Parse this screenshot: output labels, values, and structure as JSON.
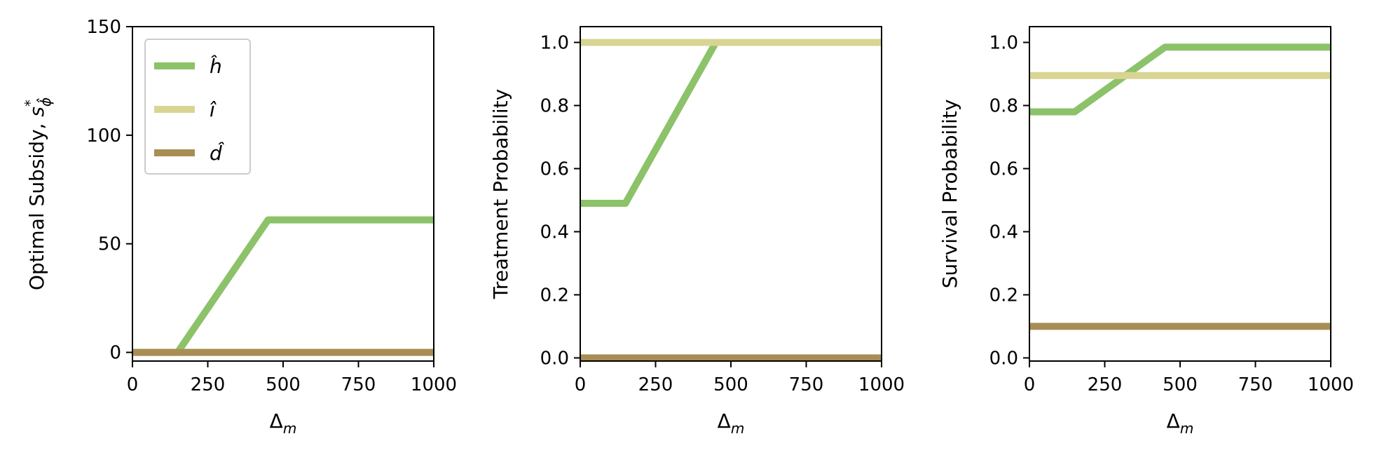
{
  "chart_data": [
    {
      "type": "line",
      "xlabel": "Δm",
      "xlabel_base": "Δ",
      "xlabel_sub": "m",
      "ylabel": "Optimal Subsidy, s*ϕ̂",
      "ylabel_main": "Optimal Subsidy, ",
      "ylabel_var": "s",
      "ylabel_sup": "*",
      "ylabel_sub": "ϕ̂",
      "xlim": [
        0,
        1000
      ],
      "ylim": [
        -4,
        150
      ],
      "xticks": [
        0,
        250,
        500,
        750,
        1000
      ],
      "yticks": [
        0,
        50,
        100,
        150
      ],
      "grid": false,
      "legend_position": "top-left",
      "series": [
        {
          "name": "ĥ",
          "color": "#8cc269",
          "x": [
            0,
            150,
            450,
            1000
          ],
          "y": [
            0,
            0,
            61,
            61
          ]
        },
        {
          "name": "î",
          "color": "#d8d594",
          "x": [
            0,
            1000
          ],
          "y": [
            0,
            0
          ]
        },
        {
          "name": "d̂",
          "color": "#a88e55",
          "x": [
            0,
            1000
          ],
          "y": [
            0,
            0
          ]
        }
      ]
    },
    {
      "type": "line",
      "xlabel": "Δm",
      "xlabel_base": "Δ",
      "xlabel_sub": "m",
      "ylabel": "Treatment Probability",
      "xlim": [
        0,
        1000
      ],
      "ylim": [
        -0.01,
        1.05
      ],
      "xticks": [
        0,
        250,
        500,
        750,
        1000
      ],
      "yticks": [
        0.0,
        0.2,
        0.4,
        0.6,
        0.8,
        1.0
      ],
      "grid": false,
      "series": [
        {
          "name": "ĥ",
          "color": "#8cc269",
          "x": [
            0,
            150,
            450,
            1000
          ],
          "y": [
            0.49,
            0.49,
            1.0,
            1.0
          ]
        },
        {
          "name": "î",
          "color": "#d8d594",
          "x": [
            0,
            1000
          ],
          "y": [
            1.0,
            1.0
          ]
        },
        {
          "name": "d̂",
          "color": "#a88e55",
          "x": [
            0,
            1000
          ],
          "y": [
            0.0,
            0.0
          ]
        }
      ]
    },
    {
      "type": "line",
      "xlabel": "Δm",
      "xlabel_base": "Δ",
      "xlabel_sub": "m",
      "ylabel": "Survival Probability",
      "xlim": [
        0,
        1000
      ],
      "ylim": [
        -0.01,
        1.05
      ],
      "xticks": [
        0,
        250,
        500,
        750,
        1000
      ],
      "yticks": [
        0.0,
        0.2,
        0.4,
        0.6,
        0.8,
        1.0
      ],
      "grid": false,
      "series": [
        {
          "name": "ĥ",
          "color": "#8cc269",
          "x": [
            0,
            150,
            450,
            1000
          ],
          "y": [
            0.78,
            0.78,
            0.985,
            0.985
          ]
        },
        {
          "name": "î",
          "color": "#d8d594",
          "x": [
            0,
            1000
          ],
          "y": [
            0.895,
            0.895
          ]
        },
        {
          "name": "d̂",
          "color": "#a88e55",
          "x": [
            0,
            1000
          ],
          "y": [
            0.1,
            0.1
          ]
        }
      ]
    }
  ]
}
